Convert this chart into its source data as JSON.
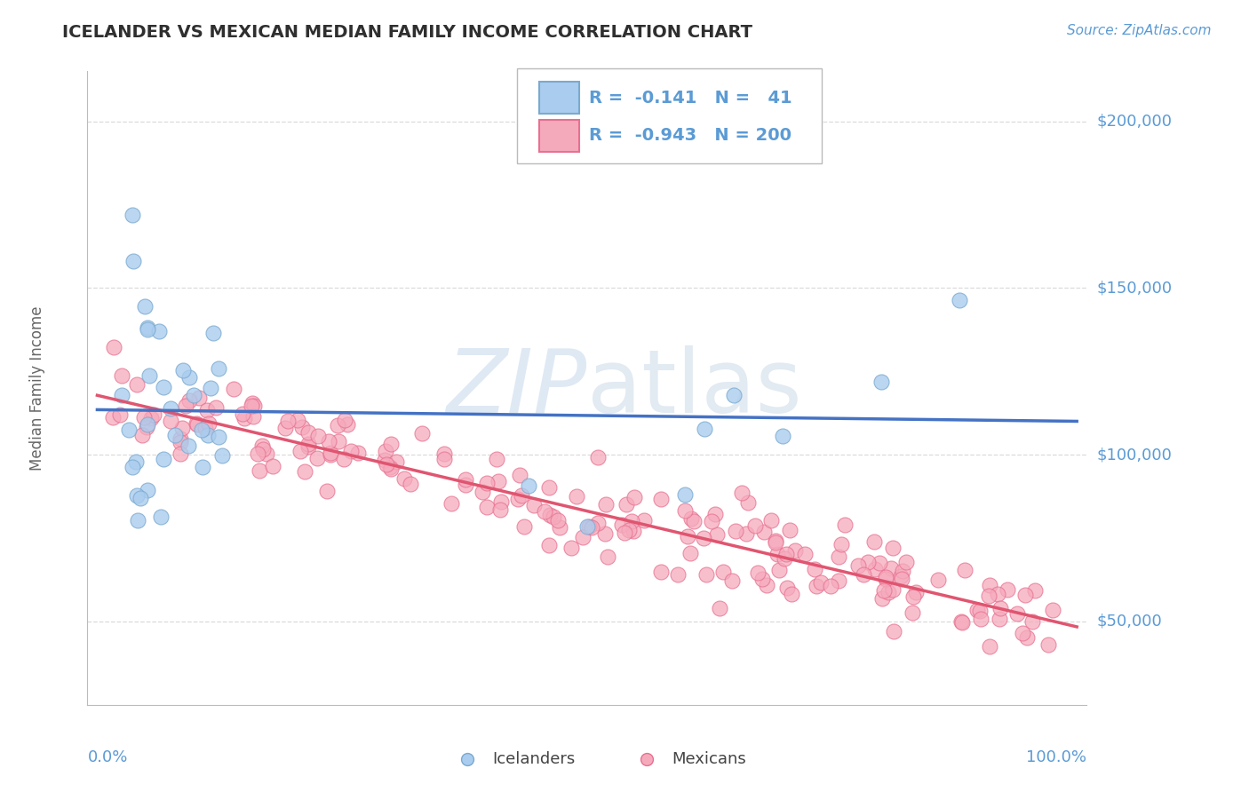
{
  "title": "ICELANDER VS MEXICAN MEDIAN FAMILY INCOME CORRELATION CHART",
  "source": "Source: ZipAtlas.com",
  "ylabel": "Median Family Income",
  "yticks": [
    50000,
    100000,
    150000,
    200000
  ],
  "ytick_labels": [
    "$50,000",
    "$100,000",
    "$150,000",
    "$200,000"
  ],
  "ymin": 25000,
  "ymax": 215000,
  "xmin": -0.01,
  "xmax": 1.01,
  "icelander_R": "-0.141",
  "icelander_N": "41",
  "mexican_R": "-0.943",
  "mexican_N": "200",
  "legend_labels": [
    "Icelanders",
    "Mexicans"
  ],
  "blue_dot_color": "#AACCEE",
  "pink_dot_color": "#F5AABC",
  "blue_edge_color": "#7AAAD0",
  "pink_edge_color": "#E87090",
  "blue_line_color": "#4472C4",
  "pink_line_color": "#E05570",
  "grid_color": "#CCCCCC",
  "title_color": "#2F2F2F",
  "axis_tick_color": "#5B9BD5",
  "source_color": "#5B9BD5",
  "background_color": "#FFFFFF",
  "watermark_zip_color": "#C5D8EC",
  "watermark_atlas_color": "#B8CCE0"
}
